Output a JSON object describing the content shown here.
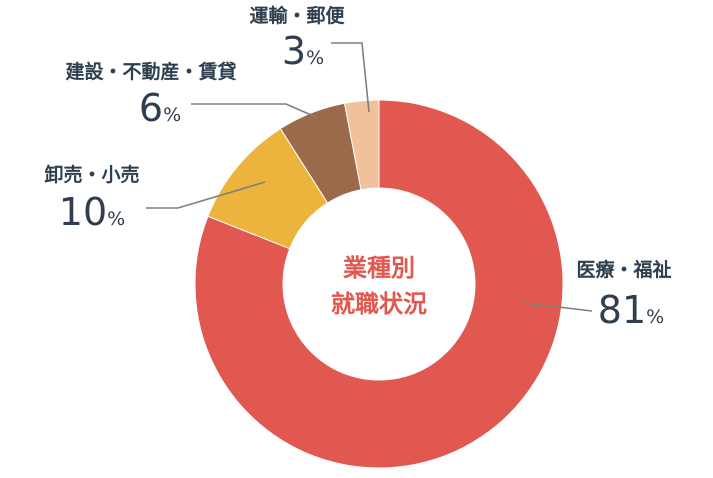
{
  "chart_data": {
    "type": "pie",
    "style": "donut",
    "center_label": [
      "業種別",
      "就職状況"
    ],
    "categories": [
      "医療・福祉",
      "卸売・小売",
      "建設・不動産・賃貸",
      "運輸・郵便"
    ],
    "values": [
      81,
      10,
      6,
      3
    ],
    "unit": "%",
    "colors": [
      "#e0584f",
      "#ecb33d",
      "#9a6a4b",
      "#f1c19c"
    ],
    "center_label_color": "#e0584f",
    "label_color": "#2f3f4f"
  }
}
